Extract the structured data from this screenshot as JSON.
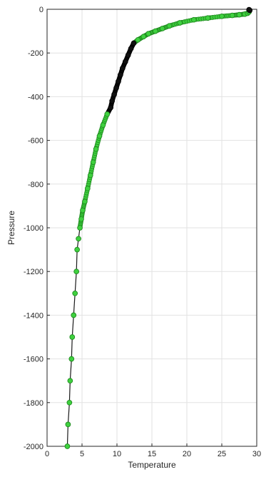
{
  "chart_data": {
    "type": "scatter",
    "title": "",
    "xlabel": "Temperature",
    "ylabel": "Pressure",
    "xlim": [
      0,
      30
    ],
    "ylim": [
      -2000,
      0
    ],
    "x_ticks": [
      0,
      5,
      10,
      15,
      20,
      25,
      30
    ],
    "y_ticks": [
      0,
      -200,
      -400,
      -600,
      -800,
      -1000,
      -1200,
      -1400,
      -1600,
      -1800,
      -2000
    ],
    "grid": true,
    "legend": "none",
    "colors": {
      "line": "#1a1a1a",
      "marker_fill": "#3fd13f",
      "marker_edge": "#1f8a1f",
      "dense_marker": "#111111",
      "grid": "#e2e2e2",
      "axis": "#262626"
    },
    "series": [
      {
        "x": [
          2.9,
          3.0,
          3.2,
          3.3,
          3.5,
          3.6,
          3.8,
          4.0,
          4.2,
          4.3,
          4.5,
          4.7,
          4.9,
          5.1,
          5.4,
          5.8,
          6.2,
          6.6,
          7.0,
          7.5,
          8.0,
          8.6,
          9.1,
          9.3,
          9.6,
          9.9,
          10.2,
          10.5,
          10.8,
          11.2,
          11.6,
          12.0,
          12.4,
          13.0,
          13.8,
          14.5,
          15.5,
          16.5,
          17.5,
          19.0,
          21.0,
          23.0,
          25.0,
          26.5,
          27.5,
          28.3,
          28.7,
          28.9,
          29.0,
          28.9
        ],
        "y": [
          -2000,
          -1900,
          -1800,
          -1700,
          -1600,
          -1500,
          -1400,
          -1300,
          -1200,
          -1100,
          -1050,
          -1000,
          -960,
          -920,
          -880,
          -820,
          -760,
          -700,
          -640,
          -580,
          -530,
          -480,
          -450,
          -420,
          -390,
          -360,
          -330,
          -300,
          -270,
          -240,
          -210,
          -180,
          -155,
          -140,
          -125,
          -112,
          -100,
          -88,
          -76,
          -62,
          -48,
          -40,
          -32,
          -28,
          -25,
          -22,
          -18,
          -12,
          -5,
          -2
        ]
      }
    ]
  }
}
